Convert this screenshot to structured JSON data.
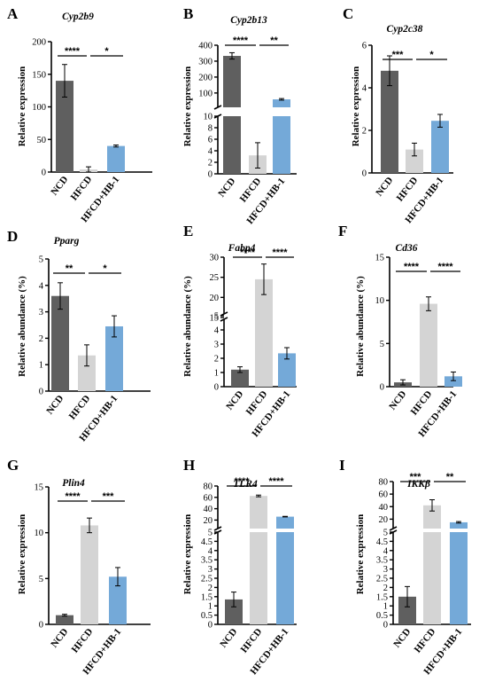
{
  "colors": {
    "NCD": "#5f5f5f",
    "HFCD": "#d4d4d4",
    "HFCD+HB-1": "#74a9d8"
  },
  "categories": [
    "NCD",
    "HFCD",
    "HFCD+HB-1"
  ],
  "chart_data": [
    {
      "type": "bar",
      "panel": "A",
      "title": "Cyp2b9",
      "ylabel": "Relative expression",
      "ylim": [
        0,
        200
      ],
      "yticks": [
        0,
        50,
        100,
        150,
        200
      ],
      "categories": [
        "NCD",
        "HFCD",
        "HFCD+HB-1"
      ],
      "values": [
        140,
        4,
        40
      ],
      "errors": [
        25,
        4,
        1.5
      ],
      "significance": [
        {
          "from": 0,
          "to": 1,
          "label": "****"
        },
        {
          "from": 1,
          "to": 2,
          "label": "*"
        }
      ],
      "grid": false,
      "legend": false
    },
    {
      "type": "bar",
      "panel": "B",
      "title": "Cyp2b13",
      "ylabel": "Relative expression",
      "broken_axis": {
        "lower": [
          0,
          10
        ],
        "upper": [
          10,
          400
        ]
      },
      "yticks": [
        0,
        2,
        4,
        6,
        8,
        10,
        100,
        200,
        300,
        400
      ],
      "categories": [
        "NCD",
        "HFCD",
        "HFCD+HB-1"
      ],
      "values": [
        333,
        3.2,
        60
      ],
      "errors": [
        20,
        2.2,
        5
      ],
      "significance": [
        {
          "from": 0,
          "to": 1,
          "label": "****"
        },
        {
          "from": 1,
          "to": 2,
          "label": "**"
        }
      ],
      "grid": false,
      "legend": false
    },
    {
      "type": "bar",
      "panel": "C",
      "title": "Cyp2c38",
      "ylabel": "Relative expression",
      "ylim": [
        0,
        6
      ],
      "yticks": [
        0,
        2,
        4,
        6
      ],
      "categories": [
        "NCD",
        "HFCD",
        "HFCD+HB-1"
      ],
      "values": [
        4.8,
        1.1,
        2.45
      ],
      "errors": [
        0.7,
        0.3,
        0.3
      ],
      "significance": [
        {
          "from": 0,
          "to": 1,
          "label": "***"
        },
        {
          "from": 1,
          "to": 2,
          "label": "*"
        }
      ],
      "grid": false,
      "legend": false
    },
    {
      "type": "bar",
      "panel": "D",
      "title": "Pparg",
      "ylabel": "Relative abundance (%)",
      "ylim": [
        0,
        5
      ],
      "yticks": [
        0,
        1,
        2,
        3,
        4,
        5
      ],
      "categories": [
        "NCD",
        "HFCD",
        "HFCD+HB-1"
      ],
      "values": [
        3.6,
        1.35,
        2.45
      ],
      "errors": [
        0.5,
        0.4,
        0.4
      ],
      "significance": [
        {
          "from": 0,
          "to": 1,
          "label": "**"
        },
        {
          "from": 1,
          "to": 2,
          "label": "*"
        }
      ],
      "grid": false,
      "legend": false
    },
    {
      "type": "bar",
      "panel": "E",
      "title": "Fabp4",
      "ylabel": "Relative abundance (%)",
      "broken_axis": {
        "lower": [
          0,
          5
        ],
        "upper": [
          15,
          30
        ]
      },
      "yticks": [
        0,
        1,
        2,
        3,
        4,
        5,
        15,
        20,
        25,
        30
      ],
      "categories": [
        "NCD",
        "HFCD",
        "HFCD+HB-1"
      ],
      "values": [
        1.2,
        24.5,
        2.35
      ],
      "errors": [
        0.2,
        3.8,
        0.4
      ],
      "significance": [
        {
          "from": 0,
          "to": 1,
          "label": "****"
        },
        {
          "from": 1,
          "to": 2,
          "label": "****"
        }
      ],
      "grid": false,
      "legend": false
    },
    {
      "type": "bar",
      "panel": "F",
      "title": "Cd36",
      "ylabel": "Relative abundance (%)",
      "ylim": [
        0,
        15
      ],
      "yticks": [
        0,
        5,
        10,
        15
      ],
      "categories": [
        "NCD",
        "HFCD",
        "HFCD+HB-1"
      ],
      "values": [
        0.5,
        9.6,
        1.2
      ],
      "errors": [
        0.3,
        0.8,
        0.5
      ],
      "significance": [
        {
          "from": 0,
          "to": 1,
          "label": "****"
        },
        {
          "from": 1,
          "to": 2,
          "label": "****"
        }
      ],
      "grid": false,
      "legend": false
    },
    {
      "type": "bar",
      "panel": "G",
      "title": "Plin4",
      "ylabel": "Relative expression",
      "ylim": [
        0,
        15
      ],
      "yticks": [
        0,
        5,
        10,
        15
      ],
      "categories": [
        "NCD",
        "HFCD",
        "HFCD+HB-1"
      ],
      "values": [
        1.0,
        10.8,
        5.2
      ],
      "errors": [
        0.1,
        0.8,
        1.0
      ],
      "significance": [
        {
          "from": 0,
          "to": 1,
          "label": "****"
        },
        {
          "from": 1,
          "to": 2,
          "label": "***"
        }
      ],
      "grid": false,
      "legend": false
    },
    {
      "type": "bar",
      "panel": "H",
      "title": "TLR4",
      "ylabel": "Relative expression",
      "broken_axis": {
        "lower": [
          0,
          5
        ],
        "upper": [
          5,
          80
        ]
      },
      "yticks": [
        0,
        0.5,
        1,
        1.5,
        2,
        2.5,
        3,
        3.5,
        4,
        4.5,
        5,
        20,
        40,
        60,
        80
      ],
      "categories": [
        "NCD",
        "HFCD",
        "HFCD+HB-1"
      ],
      "values": [
        1.35,
        62.5,
        26
      ],
      "errors": [
        0.4,
        1.5,
        0.5
      ],
      "significance": [
        {
          "from": 0,
          "to": 1,
          "label": "****"
        },
        {
          "from": 1,
          "to": 2,
          "label": "****"
        }
      ],
      "grid": false,
      "legend": false
    },
    {
      "type": "bar",
      "panel": "I",
      "title": "IKKβ",
      "ylabel": "Relative expression",
      "broken_axis": {
        "lower": [
          0,
          5
        ],
        "upper": [
          5,
          80
        ]
      },
      "yticks": [
        0,
        0.5,
        1,
        1.5,
        2,
        2.5,
        3,
        3.5,
        4,
        4.5,
        5,
        20,
        40,
        60,
        80
      ],
      "categories": [
        "NCD",
        "HFCD",
        "HFCD+HB-1"
      ],
      "values": [
        1.5,
        42,
        15
      ],
      "errors": [
        0.55,
        9,
        1.2
      ],
      "significance": [
        {
          "from": 0,
          "to": 1,
          "label": "***"
        },
        {
          "from": 1,
          "to": 2,
          "label": "**"
        }
      ],
      "grid": false,
      "legend": false
    }
  ]
}
